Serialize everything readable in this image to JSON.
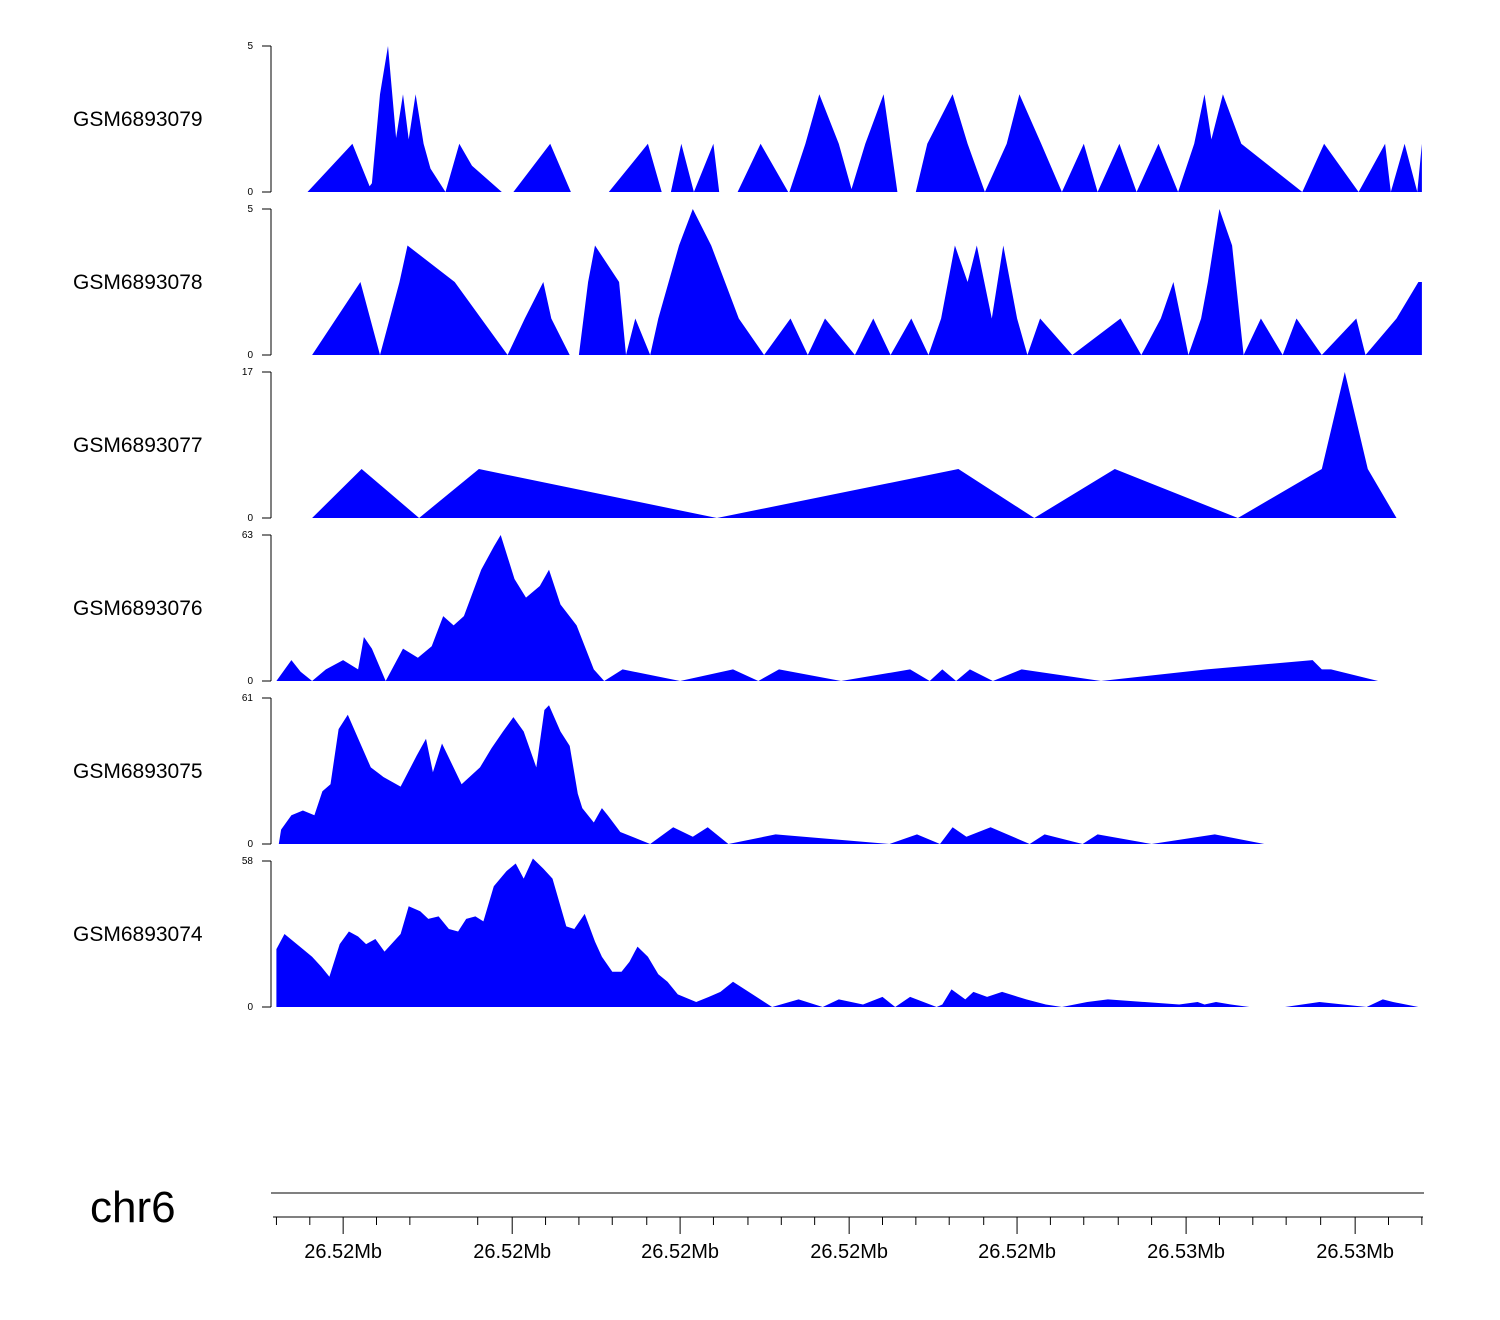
{
  "chart_data": {
    "type": "area",
    "title": "",
    "fill_color": "#0000ff",
    "xaxis": {
      "chromosome": "chr6",
      "range": [
        0,
        100
      ],
      "tick_labels": [
        "26.52Mb",
        "26.52Mb",
        "26.52Mb",
        "26.52Mb",
        "26.52Mb",
        "26.53Mb",
        "26.53Mb"
      ],
      "label_positions": [
        6.1,
        20.8,
        35.4,
        50.1,
        64.7,
        79.4,
        94.1
      ],
      "minor_ticks": [
        0.3,
        3.2,
        9.0,
        11.9,
        17.8,
        23.7,
        26.6,
        29.5,
        32.5,
        38.3,
        41.3,
        44.2,
        47.1,
        53.0,
        55.9,
        58.8,
        61.8,
        67.6,
        70.5,
        73.5,
        76.4,
        82.3,
        85.2,
        88.1,
        91.1,
        97.0,
        99.9
      ]
    },
    "series": [
      {
        "name": "GSM6893079",
        "ylim": [
          0,
          5
        ],
        "ymax_label": "5",
        "ymin_label": "0",
        "x": [
          3.0,
          6.9,
          8.4,
          8.6,
          9.3,
          10.0,
          10.7,
          11.3,
          11.8,
          12.4,
          13.1,
          13.7,
          15.0,
          16.2,
          17.3,
          19.9,
          20.9,
          24.1,
          25.9,
          28.8,
          29.2,
          32.6,
          33.8,
          34.6,
          35.5,
          36.6,
          38.3,
          38.8,
          40.4,
          42.4,
          44.8,
          44.9,
          46.3,
          47.5,
          49.2,
          50.3,
          51.5,
          53.1,
          54.3,
          55.9,
          56.9,
          59.1,
          60.4,
          61.9,
          63.8,
          64.9,
          66.8,
          68.6,
          70.5,
          71.7,
          73.6,
          75.1,
          77.0,
          78.7,
          80.1,
          81.0,
          81.6,
          82.6,
          84.2,
          89.5,
          91.4,
          94.4,
          96.7,
          97.2,
          98.4,
          99.5,
          99.9
        ],
        "y": [
          0,
          1.65,
          0.2,
          0.3,
          3.35,
          5.0,
          1.85,
          3.35,
          1.8,
          3.35,
          1.65,
          0.8,
          0,
          1.65,
          0.9,
          0,
          0,
          1.65,
          0,
          0,
          0,
          1.65,
          0,
          0,
          1.65,
          0,
          1.65,
          0,
          0,
          1.65,
          0,
          0,
          1.65,
          3.35,
          1.65,
          0.1,
          1.65,
          3.35,
          0,
          0,
          1.65,
          3.35,
          1.65,
          0,
          1.65,
          3.35,
          1.65,
          0,
          1.65,
          0,
          1.65,
          0,
          1.65,
          0,
          1.65,
          3.35,
          1.8,
          3.35,
          1.65,
          0,
          1.65,
          0,
          1.65,
          0,
          1.65,
          0,
          1.65
        ]
      },
      {
        "name": "GSM6893078",
        "ylim": [
          0,
          5
        ],
        "ymax_label": "5",
        "ymin_label": "0",
        "x": [
          3.4,
          7.6,
          9.3,
          11.0,
          11.7,
          15.8,
          20.4,
          21.9,
          23.5,
          24.2,
          25.8,
          26.6,
          27.4,
          28.0,
          30.1,
          30.7,
          31.5,
          32.8,
          33.5,
          35.3,
          36.5,
          38.1,
          40.5,
          42.7,
          45.0,
          46.5,
          48.0,
          50.6,
          52.2,
          53.7,
          55.5,
          57.0,
          58.1,
          59.3,
          60.4,
          61.2,
          62.5,
          63.5,
          64.7,
          65.6,
          66.7,
          69.5,
          73.7,
          75.5,
          77.2,
          78.3,
          79.6,
          80.7,
          81.3,
          82.3,
          83.4,
          84.4,
          85.9,
          87.8,
          89.0,
          91.2,
          94.2,
          95.0,
          97.7,
          99.6,
          99.9
        ],
        "y": [
          0,
          2.5,
          0,
          2.5,
          3.75,
          2.5,
          0,
          1.25,
          2.5,
          1.25,
          0,
          0,
          2.5,
          3.75,
          2.5,
          0,
          1.25,
          0,
          1.25,
          3.75,
          5.0,
          3.75,
          1.25,
          0,
          1.25,
          0,
          1.25,
          0,
          1.25,
          0,
          1.25,
          0,
          1.25,
          3.75,
          2.5,
          3.75,
          1.25,
          3.75,
          1.25,
          0,
          1.25,
          0,
          1.25,
          0,
          1.25,
          2.5,
          0,
          1.25,
          2.5,
          5.0,
          3.75,
          0,
          1.25,
          0,
          1.25,
          0,
          1.25,
          0,
          1.25,
          2.5,
          2.5
        ]
      },
      {
        "name": "GSM6893077",
        "ylim": [
          0,
          17
        ],
        "ymax_label": "17",
        "ymin_label": "0",
        "x": [
          3.4,
          7.7,
          12.7,
          17.9,
          38.6,
          59.6,
          66.2,
          73.2,
          83.9,
          91.2,
          93.2,
          95.2,
          97.7
        ],
        "y": [
          0,
          5.7,
          0,
          5.7,
          0,
          5.7,
          0,
          5.7,
          0,
          5.7,
          17.0,
          5.7,
          0
        ]
      },
      {
        "name": "GSM6893076",
        "ylim": [
          0,
          63
        ],
        "ymax_label": "63",
        "ymin_label": "0",
        "x": [
          0.3,
          1.6,
          2.4,
          3.4,
          4.6,
          6.1,
          7.4,
          7.9,
          8.6,
          9.8,
          11.3,
          12.6,
          13.8,
          14.8,
          15.7,
          16.6,
          18.1,
          19.2,
          19.8,
          21.0,
          22.0,
          23.2,
          24.0,
          25.0,
          26.4,
          27.9,
          28.8,
          30.4,
          35.4,
          40.0,
          42.2,
          44.0,
          49.4,
          55.4,
          57.1,
          58.2,
          59.4,
          60.6,
          62.6,
          65.1,
          72.0,
          81.2,
          90.4,
          91.2,
          92.0,
          96.1
        ],
        "y": [
          0,
          9,
          4,
          0,
          5,
          9,
          5,
          19,
          14,
          0,
          14,
          10,
          15,
          28,
          24,
          28,
          48,
          58,
          63,
          44,
          36,
          41,
          48,
          33,
          24,
          5,
          0,
          5,
          0,
          5,
          0,
          5,
          0,
          5,
          0,
          5,
          0,
          5,
          0,
          5,
          0,
          5,
          9,
          5,
          5,
          0
        ]
      },
      {
        "name": "GSM6893075",
        "ylim": [
          0,
          61
        ],
        "ymax_label": "61",
        "ymin_label": "0",
        "x": [
          0.5,
          0.7,
          1.6,
          2.6,
          3.6,
          4.3,
          5.0,
          5.7,
          6.5,
          7.5,
          8.5,
          9.6,
          11.1,
          12.5,
          13.3,
          13.9,
          14.7,
          16.4,
          18.0,
          19.0,
          20.0,
          20.9,
          21.8,
          22.9,
          23.6,
          24.0,
          25.0,
          25.8,
          26.5,
          26.9,
          27.9,
          28.6,
          29.1,
          30.2,
          32.8,
          34.8,
          36.5,
          37.8,
          39.6,
          43.7,
          53.6,
          56.0,
          58.0,
          59.1,
          60.3,
          62.4,
          65.8,
          67.1,
          70.4,
          71.7,
          76.4,
          81.9,
          86.2
        ],
        "y": [
          0,
          6,
          12,
          14,
          12,
          22,
          25,
          48,
          54,
          43,
          32,
          28,
          24,
          37,
          44,
          30,
          42,
          25,
          32,
          40,
          47,
          53,
          47,
          32,
          56,
          58,
          47,
          41,
          21,
          15,
          9,
          15,
          12,
          5,
          0,
          7,
          3,
          7,
          0,
          4,
          0,
          4,
          0,
          7,
          3,
          7,
          0,
          4,
          0,
          4,
          0,
          4,
          0
        ]
      },
      {
        "name": "GSM6893074",
        "ylim": [
          0,
          58
        ],
        "ymax_label": "58",
        "ymin_label": "0",
        "x": [
          0.3,
          1.0,
          2.6,
          3.4,
          4.2,
          4.9,
          5.8,
          6.6,
          7.4,
          8.1,
          8.9,
          9.7,
          11.1,
          11.8,
          12.8,
          13.5,
          14.4,
          15.3,
          16.1,
          16.8,
          17.6,
          18.3,
          19.2,
          20.3,
          21.1,
          21.8,
          22.6,
          23.5,
          24.3,
          25.5,
          26.2,
          27.1,
          28.0,
          28.6,
          29.5,
          30.3,
          31.0,
          31.7,
          32.6,
          33.5,
          34.3,
          35.2,
          36.8,
          37.9,
          38.9,
          40.0,
          41.7,
          43.4,
          45.7,
          47.8,
          49.2,
          51.3,
          53.0,
          54.1,
          55.4,
          57.7,
          58.2,
          59.0,
          60.2,
          60.9,
          62.1,
          63.4,
          65.5,
          67.2,
          68.6,
          70.8,
          72.6,
          78.8,
          80.4,
          81.0,
          82.0,
          83.3,
          84.9,
          88.0,
          91.0,
          95.1,
          96.5,
          97.4,
          99.6,
          99.9
        ],
        "y": [
          23,
          29,
          23,
          20,
          16,
          12,
          25,
          30,
          28,
          25,
          27,
          22,
          29,
          40,
          38,
          35,
          36,
          31,
          30,
          35,
          36,
          34,
          48,
          54,
          57,
          51,
          59,
          55,
          51,
          32,
          31,
          37,
          26,
          20,
          14,
          14,
          18,
          24,
          20,
          13,
          10,
          5,
          2,
          4,
          6,
          10,
          5,
          0,
          3,
          0,
          3,
          1,
          4,
          0,
          4,
          0,
          1,
          7,
          3,
          6,
          4,
          6,
          3,
          1,
          0,
          2,
          3,
          1,
          2,
          1,
          2,
          1,
          0,
          0,
          2,
          0,
          3,
          2,
          0,
          0
        ]
      }
    ]
  }
}
